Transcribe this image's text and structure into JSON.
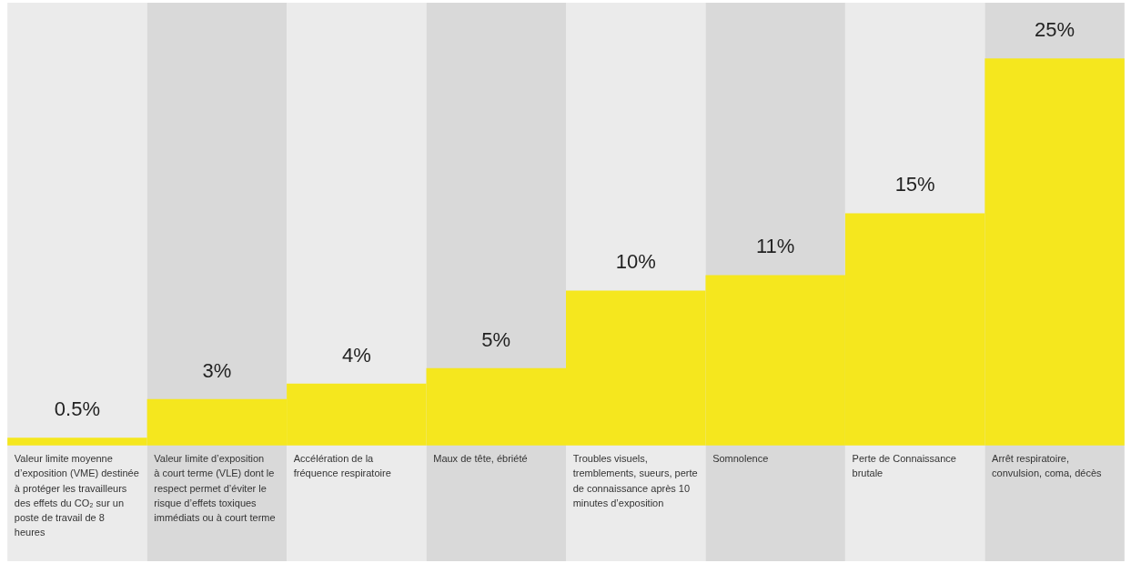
{
  "chart_data": {
    "type": "bar",
    "categories": [
      "Valeur limite moyenne d’exposition (VME) destinée à protéger les travailleurs des effets du CO₂ sur un poste de travail de 8 heures",
      "Valeur limite d’exposition à court terme (VLE) dont le respect permet d’éviter le risque d’effets toxiques immédiats ou à court terme",
      "Accélération de la fréquence respiratoire",
      "Maux de tête, ébriété",
      "Troubles visuels, tremblements, sueurs, perte de connaissance après 10 minutes d’exposition",
      "Somnolence",
      "Perte de Connaissance brutale",
      "Arrêt respiratoire, convulsion, coma, décès"
    ],
    "values": [
      0.5,
      3,
      4,
      5,
      10,
      11,
      15,
      25
    ],
    "value_labels": [
      "0.5%",
      "3%",
      "4%",
      "5%",
      "10%",
      "11%",
      "15%",
      "25%"
    ],
    "color": "#f5e71e"
  }
}
